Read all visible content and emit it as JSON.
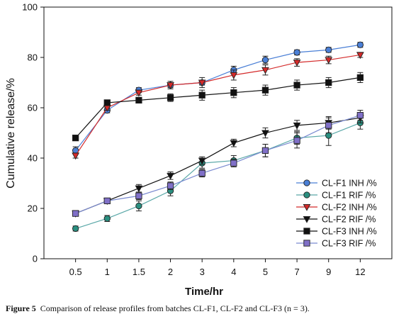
{
  "chart_data": {
    "type": "line",
    "xlabel": "Time/hr",
    "ylabel": "Cumulative release/%",
    "categories": [
      "0.5",
      "1",
      "1.5",
      "2",
      "3",
      "4",
      "5",
      "7",
      "9",
      "12"
    ],
    "ylim": [
      0,
      100
    ],
    "yticks": [
      "0",
      "20",
      "40",
      "60",
      "80",
      "100"
    ],
    "grid": false,
    "legend_position": "bottom-right",
    "series": [
      {
        "name": "CL-F1 INH /%",
        "marker": "circle",
        "color": "#4a7fd6",
        "line_color": "#4a7fd6",
        "values": [
          43,
          59,
          67,
          69,
          70,
          75,
          79,
          82,
          83,
          85
        ],
        "errors": [
          1.5,
          1,
          1,
          1,
          1,
          1.5,
          1.5,
          1,
          1,
          1
        ]
      },
      {
        "name": "CL-F1 RIF /%",
        "marker": "circle",
        "color": "#2a8f80",
        "line_color": "#5aa8a8",
        "values": [
          12,
          16,
          21,
          27,
          38,
          39,
          43,
          48,
          49,
          54
        ],
        "errors": [
          1,
          1.2,
          2,
          2,
          2,
          2,
          2.5,
          2.5,
          4,
          2.5
        ]
      },
      {
        "name": "CL-F2 INH /%",
        "marker": "triangle-down",
        "color": "#d42a2a",
        "line_color": "#d42a2a",
        "values": [
          41,
          60,
          66,
          69,
          70,
          73,
          75,
          78,
          79,
          81
        ],
        "errors": [
          1,
          1,
          1,
          1.5,
          2,
          2,
          2,
          1.5,
          1.5,
          1
        ]
      },
      {
        "name": "CL-F2 RIF /%",
        "marker": "triangle-down",
        "color": "#111111",
        "line_color": "#111111",
        "values": [
          18,
          23,
          28,
          33,
          39,
          46,
          50,
          53,
          54,
          56
        ],
        "errors": [
          1,
          1,
          1.5,
          1.5,
          1.5,
          1.5,
          2,
          2,
          2.5,
          2
        ]
      },
      {
        "name": "CL-F3 INH /%",
        "marker": "square",
        "color": "#111111",
        "line_color": "#111111",
        "values": [
          48,
          62,
          63,
          64,
          65,
          66,
          67,
          69,
          70,
          72
        ],
        "errors": [
          1,
          1,
          1,
          1.5,
          2,
          2,
          2,
          2,
          2,
          2
        ]
      },
      {
        "name": "CL-F3 RIF /%",
        "marker": "square",
        "color": "#8070c8",
        "line_color": "#7a8ad0",
        "values": [
          18,
          23,
          25,
          29,
          34,
          38,
          43,
          47,
          53,
          57
        ],
        "errors": [
          1,
          1,
          1.5,
          1.5,
          1.5,
          1.5,
          2.5,
          3,
          3,
          2
        ]
      }
    ]
  },
  "caption": {
    "label": "Figure 5",
    "text": "Comparison of release profiles from batches CL-F1, CL-F2 and CL-F3 (n = 3)."
  }
}
